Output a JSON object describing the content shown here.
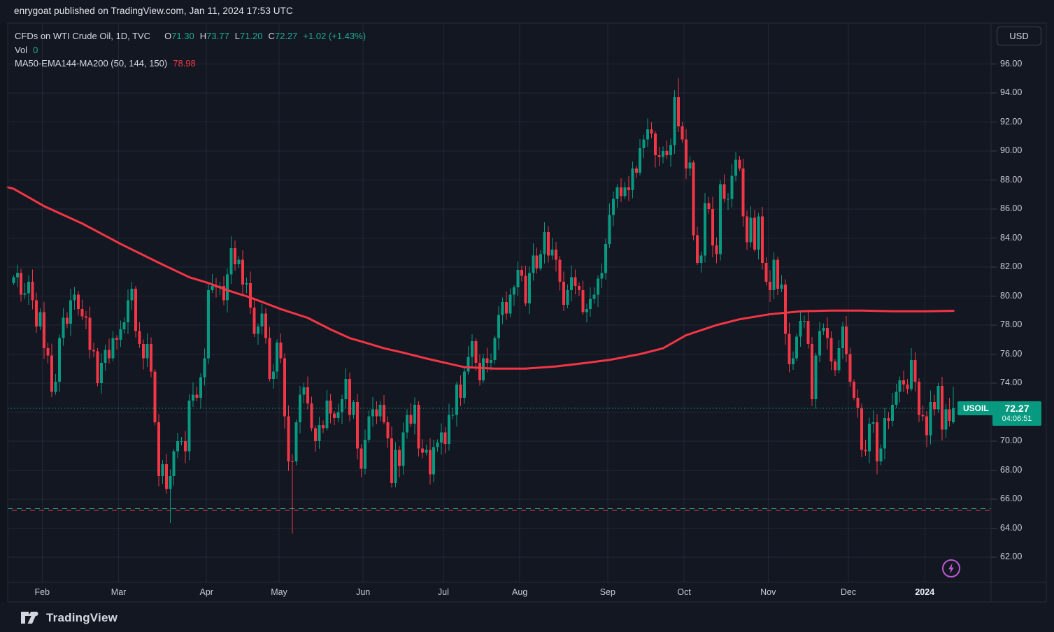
{
  "header": {
    "published_line": "enrygoat published on TradingView.com, Jan 11, 2024 17:53 UTC"
  },
  "legend": {
    "title": "CFDs on WTI Crude Oil, 1D, TVC",
    "o_label": "O",
    "o_value": "71.30",
    "h_label": "H",
    "h_value": "73.77",
    "l_label": "L",
    "l_value": "71.20",
    "c_label": "C",
    "c_value": "72.27",
    "change": "+1.02 (+1.43%)",
    "vol_label": "Vol",
    "vol_value": "0",
    "ma_label": "MA50-EMA144-MA200 (50, 144, 150)",
    "ma_value": "78.98"
  },
  "price_scale": {
    "currency_button": "USD",
    "visible_labels": [
      "96.00",
      "94.00",
      "92.00",
      "90.00",
      "88.00",
      "86.00",
      "84.00",
      "82.00",
      "80.00",
      "78.00",
      "76.00",
      "74.00",
      "70.00",
      "68.00",
      "66.00",
      "64.00",
      "62.00"
    ]
  },
  "time_scale": {
    "labels": [
      {
        "text": "Feb",
        "index": 8
      },
      {
        "text": "Mar",
        "index": 28
      },
      {
        "text": "Apr",
        "index": 51
      },
      {
        "text": "May",
        "index": 70
      },
      {
        "text": "Jun",
        "index": 92
      },
      {
        "text": "Jul",
        "index": 113
      },
      {
        "text": "Aug",
        "index": 133
      },
      {
        "text": "Sep",
        "index": 156
      },
      {
        "text": "Oct",
        "index": 176
      },
      {
        "text": "Nov",
        "index": 198
      },
      {
        "text": "Dec",
        "index": 219
      },
      {
        "text": "2024",
        "index": 239,
        "emph": true
      }
    ]
  },
  "price_label": {
    "symbol": "USOIL",
    "price": "72.27",
    "countdown": "04:06:51"
  },
  "footer": {
    "brand": "TradingView"
  },
  "colors": {
    "background": "#131722",
    "up": "#089981",
    "down": "#f23645",
    "ma_line": "#f23645",
    "grid": "rgba(54,60,78,0.45)",
    "border": "#262b38",
    "accent_teal": "#089981",
    "dashed_teal": "#2a9d8f",
    "dashed_red": "#f23645",
    "flash_purple": "#bb5ad2"
  },
  "chart_data": {
    "type": "candlestick",
    "title": "CFDs on WTI Crude Oil, 1D, TVC",
    "symbol": "USOIL",
    "interval": "1D",
    "last_candle": {
      "open": 71.3,
      "high": 73.77,
      "low": 71.2,
      "close": 72.27,
      "change": "+1.02 (+1.43%)"
    },
    "indicator_value": 78.98,
    "y_axis": {
      "tick_min": 62,
      "tick_max": 96,
      "tick_step": 2,
      "visible_range": [
        60.3,
        98.8
      ],
      "grid": true,
      "side": "right"
    },
    "x_axis": {
      "months": [
        "Feb",
        "Mar",
        "Apr",
        "May",
        "Jun",
        "Jul",
        "Aug",
        "Sep",
        "Oct",
        "Nov",
        "Dec",
        "2024"
      ]
    },
    "open_rule": "previous_close",
    "first_open": 80.9,
    "closes": [
      81.3,
      81.6,
      80.1,
      80.2,
      81.0,
      79.7,
      77.9,
      78.9,
      76.4,
      75.9,
      73.4,
      74.1,
      77.1,
      78.5,
      78.1,
      79.7,
      80.1,
      79.1,
      78.6,
      78.5,
      76.3,
      76.2,
      74.0,
      75.4,
      76.3,
      75.7,
      77.1,
      77.0,
      77.7,
      78.2,
      79.7,
      80.5,
      77.6,
      76.7,
      75.7,
      76.7,
      74.8,
      71.3,
      67.6,
      68.4,
      66.7,
      67.6,
      69.3,
      70.0,
      70.0,
      69.3,
      72.8,
      73.2,
      73.0,
      74.4,
      75.7,
      80.4,
      80.7,
      80.6,
      80.7,
      79.7,
      81.5,
      83.3,
      82.2,
      82.5,
      80.8,
      80.9,
      79.2,
      77.4,
      77.9,
      78.8,
      77.1,
      74.3,
      74.8,
      76.8,
      75.7,
      71.7,
      68.6,
      68.6,
      71.3,
      73.2,
      73.7,
      72.6,
      70.9,
      70.0,
      71.1,
      70.9,
      72.8,
      71.9,
      71.6,
      72.0,
      72.9,
      74.3,
      71.8,
      72.7,
      69.5,
      68.1,
      70.1,
      71.7,
      72.2,
      71.7,
      72.5,
      71.3,
      70.2,
      67.1,
      69.4,
      68.3,
      70.6,
      71.8,
      71.2,
      72.5,
      69.5,
      69.2,
      69.4,
      67.7,
      69.6,
      69.9,
      70.6,
      69.8,
      71.8,
      71.8,
      73.9,
      73.0,
      74.8,
      75.8,
      76.9,
      75.4,
      74.2,
      75.7,
      75.4,
      75.6,
      77.1,
      78.7,
      79.6,
      78.8,
      80.1,
      80.6,
      81.8,
      81.4,
      79.5,
      81.6,
      82.8,
      81.9,
      82.9,
      84.4,
      82.8,
      83.2,
      82.5,
      81.0,
      79.4,
      80.4,
      81.3,
      80.7,
      80.4,
      78.9,
      79.1,
      79.8,
      80.1,
      81.2,
      81.6,
      83.6,
      85.6,
      86.7,
      87.5,
      86.9,
      87.5,
      87.3,
      88.8,
      88.5,
      90.2,
      90.8,
      91.5,
      91.2,
      89.7,
      89.6,
      90.0,
      89.7,
      90.4,
      93.7,
      91.7,
      90.8,
      88.8,
      89.2,
      84.2,
      82.3,
      82.8,
      86.4,
      86.0,
      83.5,
      82.9,
      87.7,
      86.7,
      86.7,
      88.3,
      89.4,
      88.8,
      85.5,
      83.7,
      85.4,
      83.2,
      85.5,
      82.3,
      81.0,
      80.4,
      82.5,
      80.5,
      80.8,
      77.4,
      75.3,
      75.7,
      77.2,
      78.3,
      78.3,
      76.7,
      72.9,
      75.9,
      77.6,
      77.8,
      77.1,
      75.5,
      74.9,
      76.4,
      77.9,
      76.0,
      74.1,
      73.0,
      72.3,
      69.4,
      69.3,
      71.2,
      71.3,
      68.6,
      69.5,
      71.6,
      71.4,
      72.5,
      73.4,
      74.2,
      73.9,
      73.6,
      75.6,
      74.1,
      71.8,
      71.7,
      70.4,
      72.7,
      72.2,
      73.8,
      70.8,
      72.2,
      71.4,
      72.27
    ],
    "special_candles": {
      "41": {
        "low": 64.36
      },
      "73": {
        "low": 63.64,
        "dir": "down"
      },
      "99": {
        "low": 66.8
      },
      "173": {
        "high": 94.2
      },
      "174": {
        "high": 95.03
      },
      "209": {
        "low": 72.4
      },
      "226": {
        "low": 67.71
      },
      "246": {
        "open": 71.3,
        "high": 73.77,
        "low": 71.2
      }
    },
    "ma_line": {
      "name": "MA50-EMA144-MA200",
      "value": 78.98,
      "points": [
        [
          -1.5,
          87.5
        ],
        [
          0,
          87.4
        ],
        [
          8,
          86.2
        ],
        [
          18,
          85.0
        ],
        [
          28,
          83.6
        ],
        [
          38,
          82.3
        ],
        [
          46,
          81.3
        ],
        [
          51,
          80.9
        ],
        [
          56,
          80.4
        ],
        [
          62,
          79.9
        ],
        [
          70,
          79.1
        ],
        [
          77,
          78.5
        ],
        [
          83,
          77.7
        ],
        [
          88,
          77.1
        ],
        [
          92,
          76.8
        ],
        [
          97,
          76.4
        ],
        [
          102,
          76.1
        ],
        [
          108,
          75.7
        ],
        [
          113,
          75.4
        ],
        [
          118,
          75.1
        ],
        [
          126,
          75.0
        ],
        [
          134,
          75.0
        ],
        [
          142,
          75.15
        ],
        [
          150,
          75.4
        ],
        [
          156,
          75.6
        ],
        [
          164,
          76.0
        ],
        [
          170,
          76.4
        ],
        [
          176,
          77.3
        ],
        [
          184,
          78.0
        ],
        [
          190,
          78.4
        ],
        [
          198,
          78.75
        ],
        [
          206,
          78.95
        ],
        [
          214,
          79.0
        ],
        [
          222,
          79.0
        ],
        [
          230,
          78.95
        ],
        [
          239,
          78.95
        ],
        [
          246,
          78.98
        ]
      ]
    },
    "levels": {
      "current_price_dotted": 72.27,
      "dashed_teal": 65.35,
      "dashed_red": 65.22
    }
  }
}
